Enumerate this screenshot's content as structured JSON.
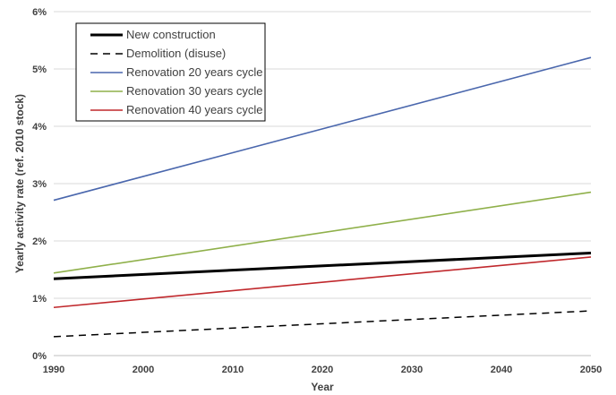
{
  "chart_data": {
    "type": "line",
    "xlabel": "Year",
    "ylabel": "Yearly activity rate (ref. 2010 stock)",
    "x": [
      1990,
      2050
    ],
    "xlim": [
      1990,
      2050
    ],
    "ylim": [
      0,
      6
    ],
    "x_ticks": [
      "1990",
      "2000",
      "2010",
      "2020",
      "2030",
      "2040",
      "2050"
    ],
    "y_ticks": [
      "0%",
      "1%",
      "2%",
      "3%",
      "4%",
      "5%",
      "6%"
    ],
    "grid": "horizontal",
    "legend_position": "top-left",
    "series": [
      {
        "name": "New construction",
        "values": [
          1.34,
          1.79
        ],
        "color": "#000000",
        "style": "solid-thick"
      },
      {
        "name": "Demolition (disuse)",
        "values": [
          0.33,
          0.78
        ],
        "color": "#000000",
        "style": "dashed"
      },
      {
        "name": "Renovation 20 years cycle",
        "values": [
          2.71,
          5.2
        ],
        "color": "#4a67ad",
        "style": "solid"
      },
      {
        "name": "Renovation 30 years cycle",
        "values": [
          1.44,
          2.85
        ],
        "color": "#8fb04a",
        "style": "solid"
      },
      {
        "name": "Renovation 40 years cycle",
        "values": [
          0.84,
          1.72
        ],
        "color": "#c0282c",
        "style": "solid"
      }
    ]
  }
}
